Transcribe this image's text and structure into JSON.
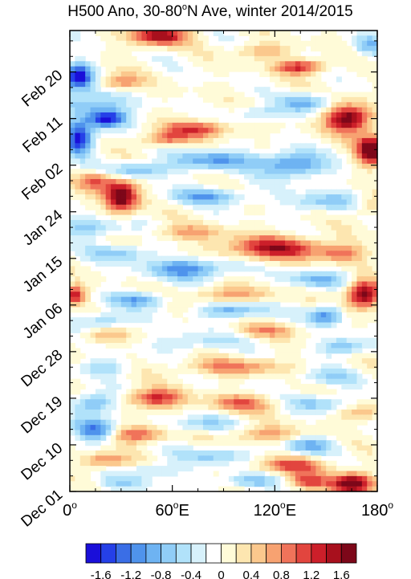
{
  "chart_data": {
    "type": "heatmap",
    "title_prefix": "H500 Ano, 30-80",
    "title_degree": "o",
    "title_suffix": "N Ave, winter 2014/2015",
    "x_ticks": [
      {
        "lon": 0,
        "label": "0",
        "sup": "o",
        "dir": ""
      },
      {
        "lon": 60,
        "label": "60",
        "sup": "o",
        "dir": "E"
      },
      {
        "lon": 120,
        "label": "120",
        "sup": "o",
        "dir": "E"
      },
      {
        "lon": 180,
        "label": "180",
        "sup": "o",
        "dir": ""
      }
    ],
    "xlim": [
      0,
      180
    ],
    "y_ticks": [
      {
        "day": 0,
        "label": "Dec 01"
      },
      {
        "day": 9,
        "label": "Dec 10"
      },
      {
        "day": 18,
        "label": "Dec 19"
      },
      {
        "day": 27,
        "label": "Dec 28"
      },
      {
        "day": 36,
        "label": "Jan 06"
      },
      {
        "day": 45,
        "label": "Jan 15"
      },
      {
        "day": 54,
        "label": "Jan 24"
      },
      {
        "day": 63,
        "label": "Feb 02"
      },
      {
        "day": 72,
        "label": "Feb 11"
      },
      {
        "day": 81,
        "label": "Feb 20"
      }
    ],
    "ylim_days": [
      0,
      89
    ],
    "colorbar_levels": [
      -1.6,
      -1.4,
      -1.2,
      -1.0,
      -0.8,
      -0.6,
      -0.4,
      -0.2,
      0,
      0.2,
      0.4,
      0.6,
      0.8,
      1.0,
      1.2,
      1.4,
      1.6
    ],
    "colorbar_labels": [
      "-1.6",
      "-1.2",
      "-0.8",
      "-0.4",
      "0",
      "0.4",
      "0.8",
      "1.2",
      "1.6"
    ],
    "colorbar_colors": [
      "#1a0fd9",
      "#2540e8",
      "#3a6ee6",
      "#4f93ec",
      "#6eb3f2",
      "#90cdf7",
      "#b1e2fa",
      "#d7f1fb",
      "#ffffff",
      "#fffbd8",
      "#fde6b0",
      "#fbc88d",
      "#f7a271",
      "#f0735a",
      "#e2453e",
      "#cc1f2a",
      "#a8101d",
      "#7d0719"
    ],
    "anomaly_features": [
      {
        "lon": 5,
        "day": 80,
        "value": -1.8,
        "lon_w": 8,
        "day_w": 2.6
      },
      {
        "lon": 5,
        "day": 68,
        "value": -1.7,
        "lon_w": 8,
        "day_w": 3.0
      },
      {
        "lon": 22,
        "day": 72,
        "value": -1.7,
        "lon_w": 12,
        "day_w": 1.8
      },
      {
        "lon": 10,
        "day": 75,
        "value": -0.8,
        "lon_w": 22,
        "day_w": 2.2
      },
      {
        "lon": 52,
        "day": 88,
        "value": 1.6,
        "lon_w": 16,
        "day_w": 1.8
      },
      {
        "lon": 30,
        "day": 79,
        "value": 0.8,
        "lon_w": 12,
        "day_w": 1.6
      },
      {
        "lon": 135,
        "day": 82,
        "value": 1.3,
        "lon_w": 14,
        "day_w": 1.4
      },
      {
        "lon": 112,
        "day": 85,
        "value": 0.6,
        "lon_w": 16,
        "day_w": 1.5
      },
      {
        "lon": 175,
        "day": 86,
        "value": -0.7,
        "lon_w": 10,
        "day_w": 2.0
      },
      {
        "lon": 163,
        "day": 72,
        "value": 1.9,
        "lon_w": 13,
        "day_w": 2.6
      },
      {
        "lon": 177,
        "day": 66,
        "value": 2.0,
        "lon_w": 9,
        "day_w": 2.8
      },
      {
        "lon": 75,
        "day": 70,
        "value": 1.1,
        "lon_w": 20,
        "day_w": 1.6
      },
      {
        "lon": 55,
        "day": 68,
        "value": 0.9,
        "lon_w": 14,
        "day_w": 1.4
      },
      {
        "lon": 85,
        "day": 64,
        "value": -1.0,
        "lon_w": 24,
        "day_w": 1.8
      },
      {
        "lon": 130,
        "day": 63,
        "value": -1.2,
        "lon_w": 18,
        "day_w": 2.4
      },
      {
        "lon": 40,
        "day": 62,
        "value": -0.9,
        "lon_w": 18,
        "day_w": 1.6
      },
      {
        "lon": 138,
        "day": 75,
        "value": -0.9,
        "lon_w": 14,
        "day_w": 1.8
      },
      {
        "lon": 110,
        "day": 73,
        "value": -0.6,
        "lon_w": 14,
        "day_w": 1.4
      },
      {
        "lon": 30,
        "day": 57,
        "value": 1.9,
        "lon_w": 10,
        "day_w": 3.2
      },
      {
        "lon": 15,
        "day": 60,
        "value": 1.0,
        "lon_w": 10,
        "day_w": 1.8
      },
      {
        "lon": 82,
        "day": 57,
        "value": -0.9,
        "lon_w": 22,
        "day_w": 1.6
      },
      {
        "lon": 150,
        "day": 56,
        "value": -0.7,
        "lon_w": 22,
        "day_w": 1.8
      },
      {
        "lon": 175,
        "day": 55,
        "value": 0.6,
        "lon_w": 10,
        "day_w": 2.0
      },
      {
        "lon": 12,
        "day": 51,
        "value": -0.8,
        "lon_w": 18,
        "day_w": 2.0
      },
      {
        "lon": 120,
        "day": 47,
        "value": 1.4,
        "lon_w": 30,
        "day_w": 2.2
      },
      {
        "lon": 160,
        "day": 46,
        "value": 0.8,
        "lon_w": 14,
        "day_w": 1.6
      },
      {
        "lon": 70,
        "day": 50,
        "value": 0.7,
        "lon_w": 20,
        "day_w": 1.4
      },
      {
        "lon": 70,
        "day": 43,
        "value": -1.1,
        "lon_w": 25,
        "day_w": 2.0
      },
      {
        "lon": 30,
        "day": 46,
        "value": -0.7,
        "lon_w": 18,
        "day_w": 1.6
      },
      {
        "lon": 145,
        "day": 41,
        "value": -0.8,
        "lon_w": 18,
        "day_w": 1.6
      },
      {
        "lon": 3,
        "day": 38,
        "value": 1.4,
        "lon_w": 6,
        "day_w": 1.8
      },
      {
        "lon": 172,
        "day": 38,
        "value": 1.9,
        "lon_w": 10,
        "day_w": 2.6
      },
      {
        "lon": 150,
        "day": 34,
        "value": -1.2,
        "lon_w": 10,
        "day_w": 1.8
      },
      {
        "lon": 40,
        "day": 37,
        "value": -0.9,
        "lon_w": 18,
        "day_w": 1.4
      },
      {
        "lon": 95,
        "day": 35,
        "value": -0.9,
        "lon_w": 20,
        "day_w": 1.4
      },
      {
        "lon": 95,
        "day": 38,
        "value": 0.7,
        "lon_w": 25,
        "day_w": 1.6
      },
      {
        "lon": 20,
        "day": 33,
        "value": -0.7,
        "lon_w": 15,
        "day_w": 1.6
      },
      {
        "lon": 20,
        "day": 30,
        "value": 0.6,
        "lon_w": 14,
        "day_w": 1.4
      },
      {
        "lon": 115,
        "day": 31,
        "value": 0.6,
        "lon_w": 20,
        "day_w": 1.4
      },
      {
        "lon": 75,
        "day": 29,
        "value": -0.5,
        "lon_w": 25,
        "day_w": 1.8
      },
      {
        "lon": 160,
        "day": 28,
        "value": -0.8,
        "lon_w": 14,
        "day_w": 1.6
      },
      {
        "lon": 95,
        "day": 24,
        "value": 0.8,
        "lon_w": 30,
        "day_w": 1.6
      },
      {
        "lon": 20,
        "day": 24,
        "value": -0.6,
        "lon_w": 14,
        "day_w": 1.6
      },
      {
        "lon": 150,
        "day": 22,
        "value": -0.5,
        "lon_w": 20,
        "day_w": 1.6
      },
      {
        "lon": 50,
        "day": 18,
        "value": 1.3,
        "lon_w": 16,
        "day_w": 1.8
      },
      {
        "lon": 100,
        "day": 17,
        "value": 0.9,
        "lon_w": 20,
        "day_w": 1.6
      },
      {
        "lon": 15,
        "day": 17,
        "value": -1.0,
        "lon_w": 12,
        "day_w": 2.0
      },
      {
        "lon": 145,
        "day": 17,
        "value": -0.7,
        "lon_w": 16,
        "day_w": 1.6
      },
      {
        "lon": 170,
        "day": 15,
        "value": 0.6,
        "lon_w": 12,
        "day_w": 1.6
      },
      {
        "lon": 15,
        "day": 12,
        "value": -1.2,
        "lon_w": 12,
        "day_w": 2.2
      },
      {
        "lon": 40,
        "day": 11,
        "value": 1.1,
        "lon_w": 16,
        "day_w": 1.6
      },
      {
        "lon": 75,
        "day": 13,
        "value": -0.6,
        "lon_w": 20,
        "day_w": 1.6
      },
      {
        "lon": 115,
        "day": 11,
        "value": 0.7,
        "lon_w": 22,
        "day_w": 1.6
      },
      {
        "lon": 140,
        "day": 9,
        "value": -0.8,
        "lon_w": 16,
        "day_w": 1.6
      },
      {
        "lon": 85,
        "day": 7,
        "value": -0.7,
        "lon_w": 20,
        "day_w": 1.6
      },
      {
        "lon": 20,
        "day": 6,
        "value": 0.9,
        "lon_w": 14,
        "day_w": 1.4
      },
      {
        "lon": 130,
        "day": 5,
        "value": 1.0,
        "lon_w": 20,
        "day_w": 1.6
      },
      {
        "lon": 50,
        "day": 4,
        "value": -0.6,
        "lon_w": 16,
        "day_w": 1.4
      },
      {
        "lon": 165,
        "day": 1.5,
        "value": 1.9,
        "lon_w": 12,
        "day_w": 2.0
      },
      {
        "lon": 140,
        "day": 2,
        "value": 1.0,
        "lon_w": 12,
        "day_w": 1.6
      },
      {
        "lon": 105,
        "day": 2,
        "value": -0.7,
        "lon_w": 16,
        "day_w": 1.4
      },
      {
        "lon": 30,
        "day": 1.5,
        "value": -0.5,
        "lon_w": 16,
        "day_w": 1.4
      }
    ]
  }
}
